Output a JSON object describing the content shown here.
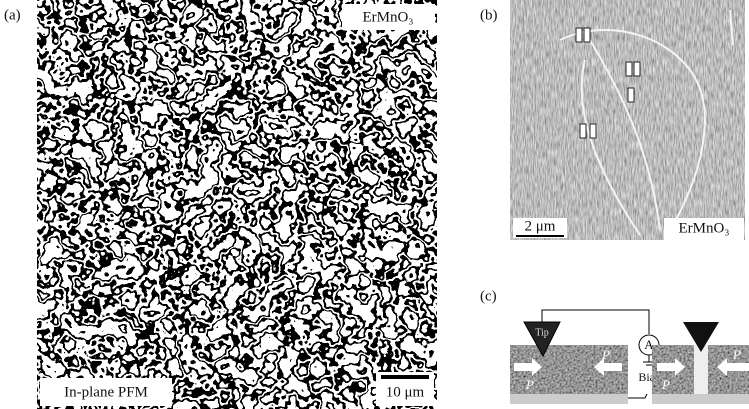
{
  "panels": [
    {
      "label": "(a)",
      "material": "ErMnO₃",
      "mode": "In-plane PFM",
      "scale_bar": "10 μm"
    },
    {
      "label": "(b)",
      "scale_bar": "2 μm",
      "material": "ErMnO₃"
    },
    {
      "label": "(c)",
      "tip": "Tip",
      "meter": "A",
      "bias": "Bias",
      "polarization": "P"
    }
  ]
}
